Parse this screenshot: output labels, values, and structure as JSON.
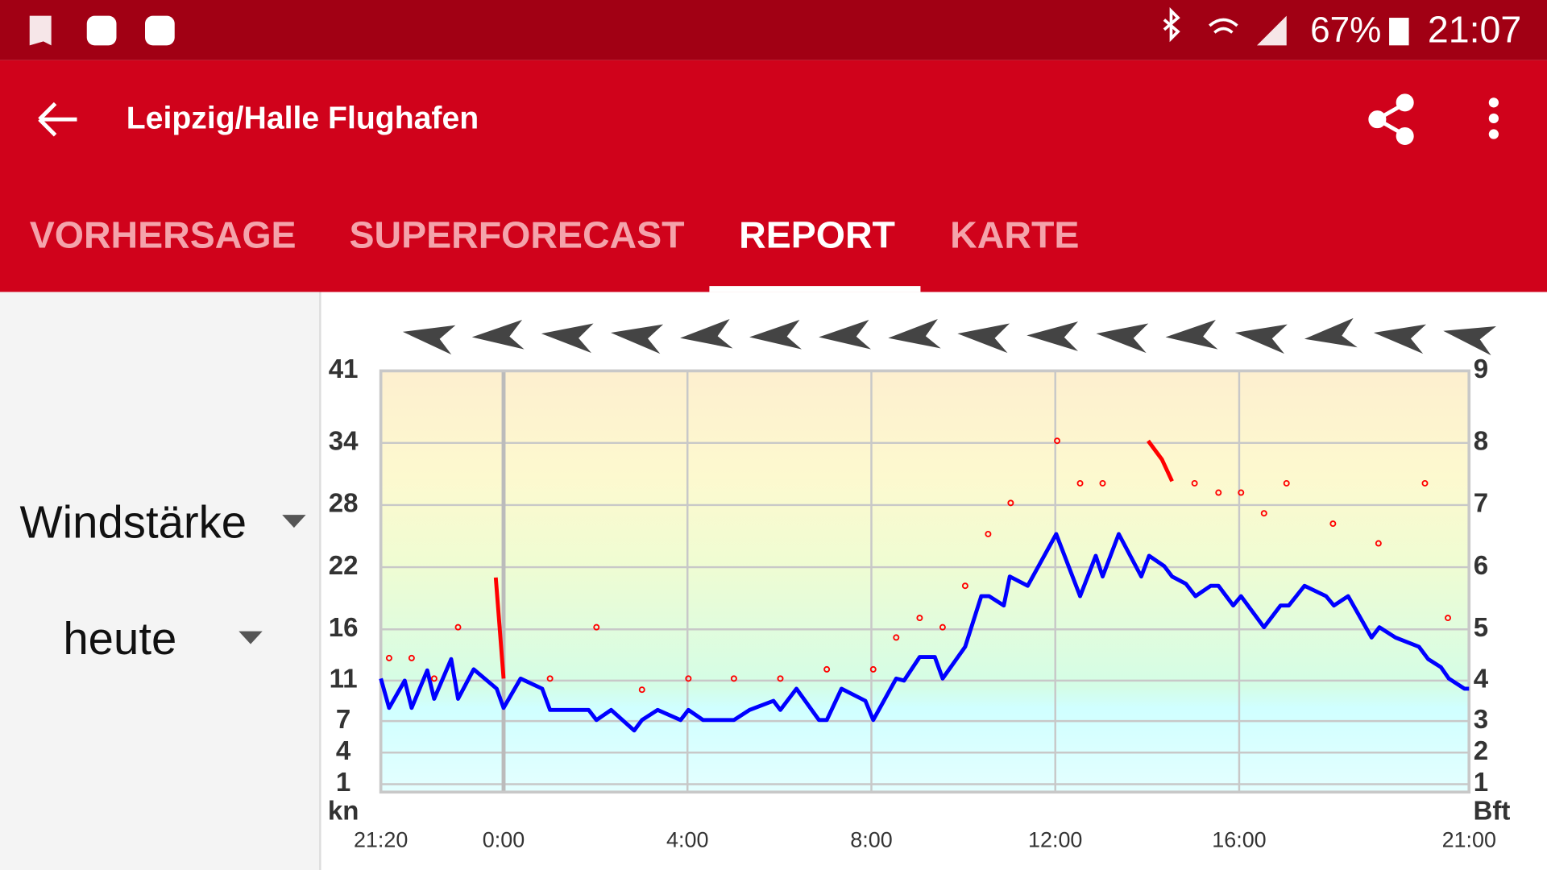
{
  "status_bar": {
    "battery": "67%",
    "time": "21:07"
  },
  "app_bar": {
    "title": "Leipzig/Halle Flughafen"
  },
  "tabs": {
    "items": [
      "VORHERSAGE",
      "SUPERFORECAST",
      "REPORT",
      "KARTE"
    ],
    "selected": 2
  },
  "selectors": {
    "measure": "Windstärke",
    "period": "heute"
  },
  "chart_data": {
    "type": "line",
    "xlim": [
      -2.67,
      21
    ],
    "xticks": [
      {
        "value": -2.67,
        "label": "21:20"
      },
      {
        "value": 0,
        "label": "0:00"
      },
      {
        "value": 4,
        "label": "4:00"
      },
      {
        "value": 8,
        "label": "8:00"
      },
      {
        "value": 12,
        "label": "12:00"
      },
      {
        "value": 16,
        "label": "16:00"
      },
      {
        "value": 21,
        "label": "21:00"
      }
    ],
    "ylim": [
      0,
      41
    ],
    "yticks": [
      1,
      4,
      7,
      11,
      16,
      22,
      28,
      34,
      41
    ],
    "ylabel": "kn",
    "y2lim": [
      0,
      9
    ],
    "y2ticks": [
      1,
      2,
      3,
      4,
      5,
      6,
      7,
      8,
      9
    ],
    "y2label": "Bft",
    "grid": true,
    "series": [
      {
        "color": "#0000ff",
        "style": "line",
        "x": [
          -2.67,
          -2.49,
          -2.15,
          -2.0,
          -1.66,
          -1.51,
          -1.14,
          -0.99,
          -0.65,
          -0.15,
          0,
          0.37,
          0.84,
          1.01,
          1.85,
          2.02,
          2.34,
          2.84,
          3.01,
          3.35,
          3.85,
          4.02,
          4.34,
          5.01,
          5.35,
          5.87,
          6.02,
          6.37,
          6.86,
          7.03,
          7.35,
          7.87,
          8.04,
          8.54,
          8.71,
          9.05,
          9.38,
          9.55,
          10.04,
          10.39,
          10.56,
          10.88,
          11.01,
          11.4,
          12.02,
          12.54,
          12.88,
          13.03,
          13.38,
          13.87,
          14.04,
          14.37,
          14.54,
          14.84,
          15.05,
          15.38,
          15.55,
          15.87,
          16.04,
          16.54,
          16.9,
          17.08,
          17.42,
          17.89,
          18.06,
          18.37,
          18.88,
          19.05,
          19.4,
          19.91,
          20.11,
          20.39,
          20.56,
          20.9,
          21.0
        ],
        "values": [
          11.2,
          8.3,
          11.0,
          8.3,
          12.0,
          9.2,
          13.1,
          9.2,
          12.1,
          10.2,
          8.3,
          11.2,
          10.2,
          8.1,
          8.1,
          7.1,
          8.1,
          6.1,
          7.1,
          8.1,
          7.1,
          8.1,
          7.1,
          7.1,
          8.1,
          9.0,
          8.1,
          10.2,
          7.1,
          7.1,
          10.2,
          9.0,
          7.1,
          11.2,
          11.0,
          13.3,
          13.3,
          11.2,
          14.3,
          19.2,
          19.2,
          18.3,
          21.1,
          20.2,
          25.2,
          19.2,
          23.1,
          21.1,
          25.2,
          21.1,
          23.1,
          22.1,
          21.1,
          20.4,
          19.2,
          20.2,
          20.2,
          18.3,
          19.2,
          16.2,
          18.3,
          18.3,
          20.2,
          19.2,
          18.3,
          19.2,
          15.2,
          16.2,
          15.2,
          14.3,
          13.1,
          12.3,
          11.2,
          10.2,
          10.2
        ]
      },
      {
        "color": "#ff0000",
        "style": "dots",
        "x": [
          -2.49,
          -2.0,
          -1.51,
          -0.99,
          1.01,
          2.02,
          3.01,
          4.02,
          5.01,
          6.02,
          7.03,
          8.04,
          8.54,
          9.05,
          9.55,
          10.04,
          10.54,
          11.03,
          12.04,
          12.54,
          13.03,
          15.03,
          15.55,
          16.04,
          16.54,
          17.03,
          18.04,
          19.03,
          20.04,
          20.54
        ],
        "values": [
          13.2,
          13.2,
          11.2,
          16.2,
          11.2,
          16.2,
          10.1,
          11.2,
          11.2,
          11.2,
          12.1,
          12.1,
          15.2,
          17.1,
          16.2,
          20.2,
          25.2,
          28.2,
          34.2,
          30.1,
          30.1,
          30.1,
          29.2,
          29.2,
          27.2,
          30.1,
          26.2,
          24.3,
          30.1,
          17.1
        ]
      },
      {
        "color": "#ff0000",
        "style": "line",
        "x": [
          -0.17,
          0,
          7,
          14.02,
          14.32,
          14.54
        ],
        "values": [
          21.0,
          11.2,
          null,
          34.2,
          32.4,
          30.3
        ]
      }
    ]
  }
}
